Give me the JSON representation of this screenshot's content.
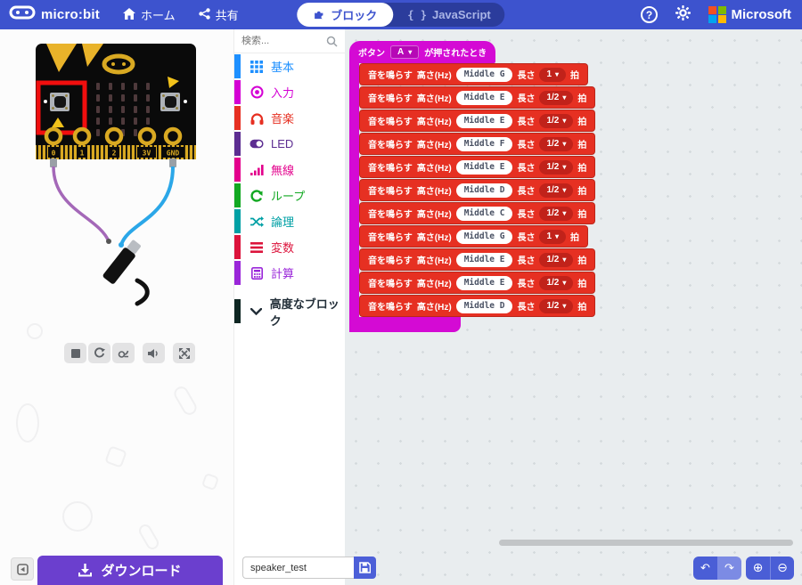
{
  "header": {
    "logo_text": "micro:bit",
    "home_label": "ホーム",
    "share_label": "共有",
    "tab_blocks_label": "ブロック",
    "tab_js_braces": "{ }",
    "tab_js_label": "JavaScript",
    "help_glyph": "?",
    "brand_name": "Microsoft",
    "brand_colors": {
      "c0": "#F25022",
      "c1": "#7FBA00",
      "c2": "#00A4EF",
      "c3": "#FFB900"
    },
    "bar_color": "#3D53CE"
  },
  "simulator": {
    "pins": [
      "0",
      "1",
      "2",
      "3V",
      "GND"
    ],
    "highlight_color": "#F10E0E",
    "controls": [
      "stop",
      "restart",
      "slow-mo",
      "volume",
      "fullscreen"
    ]
  },
  "toolbox": {
    "search_placeholder": "検索...",
    "categories": [
      {
        "label": "基本",
        "color": "#1E90FF"
      },
      {
        "label": "入力",
        "color": "#D400D4"
      },
      {
        "label": "音楽",
        "color": "#E63022"
      },
      {
        "label": "LED",
        "color": "#5C2D91"
      },
      {
        "label": "無線",
        "color": "#E3008C"
      },
      {
        "label": "ループ",
        "color": "#12A822"
      },
      {
        "label": "論理",
        "color": "#00A0A5"
      },
      {
        "label": "変数",
        "color": "#DC143C"
      },
      {
        "label": "計算",
        "color": "#9A26D9"
      }
    ],
    "advanced": {
      "label": "高度なブロック",
      "color": "#0E2622"
    }
  },
  "workspace": {
    "hat": {
      "prefix": "ボタン",
      "dropdown_value": "A",
      "caret": "▾",
      "suffix": "が押されたとき",
      "color": "#D40AD4"
    },
    "labels": {
      "action": "音を鳴らす",
      "pitch": "高さ(Hz)",
      "length": "長さ",
      "beat": "拍"
    },
    "block_color": "#E63022",
    "dropdown_color": "#C1221A",
    "notes": [
      {
        "note": "Middle G",
        "duration": "1"
      },
      {
        "note": "Middle E",
        "duration": "1/2"
      },
      {
        "note": "Middle E",
        "duration": "1/2"
      },
      {
        "note": "Middle F",
        "duration": "1/2"
      },
      {
        "note": "Middle E",
        "duration": "1/2"
      },
      {
        "note": "Middle D",
        "duration": "1/2"
      },
      {
        "note": "Middle C",
        "duration": "1/2"
      },
      {
        "note": "Middle G",
        "duration": "1"
      },
      {
        "note": "Middle E",
        "duration": "1/2"
      },
      {
        "note": "Middle E",
        "duration": "1/2"
      },
      {
        "note": "Middle D",
        "duration": "1/2"
      }
    ]
  },
  "footer": {
    "download_label": "ダウンロード",
    "filename": "speaker_test",
    "icons": {
      "undo": "↶",
      "redo": "↷",
      "zoom_in": "⊕",
      "zoom_out": "⊖"
    }
  }
}
